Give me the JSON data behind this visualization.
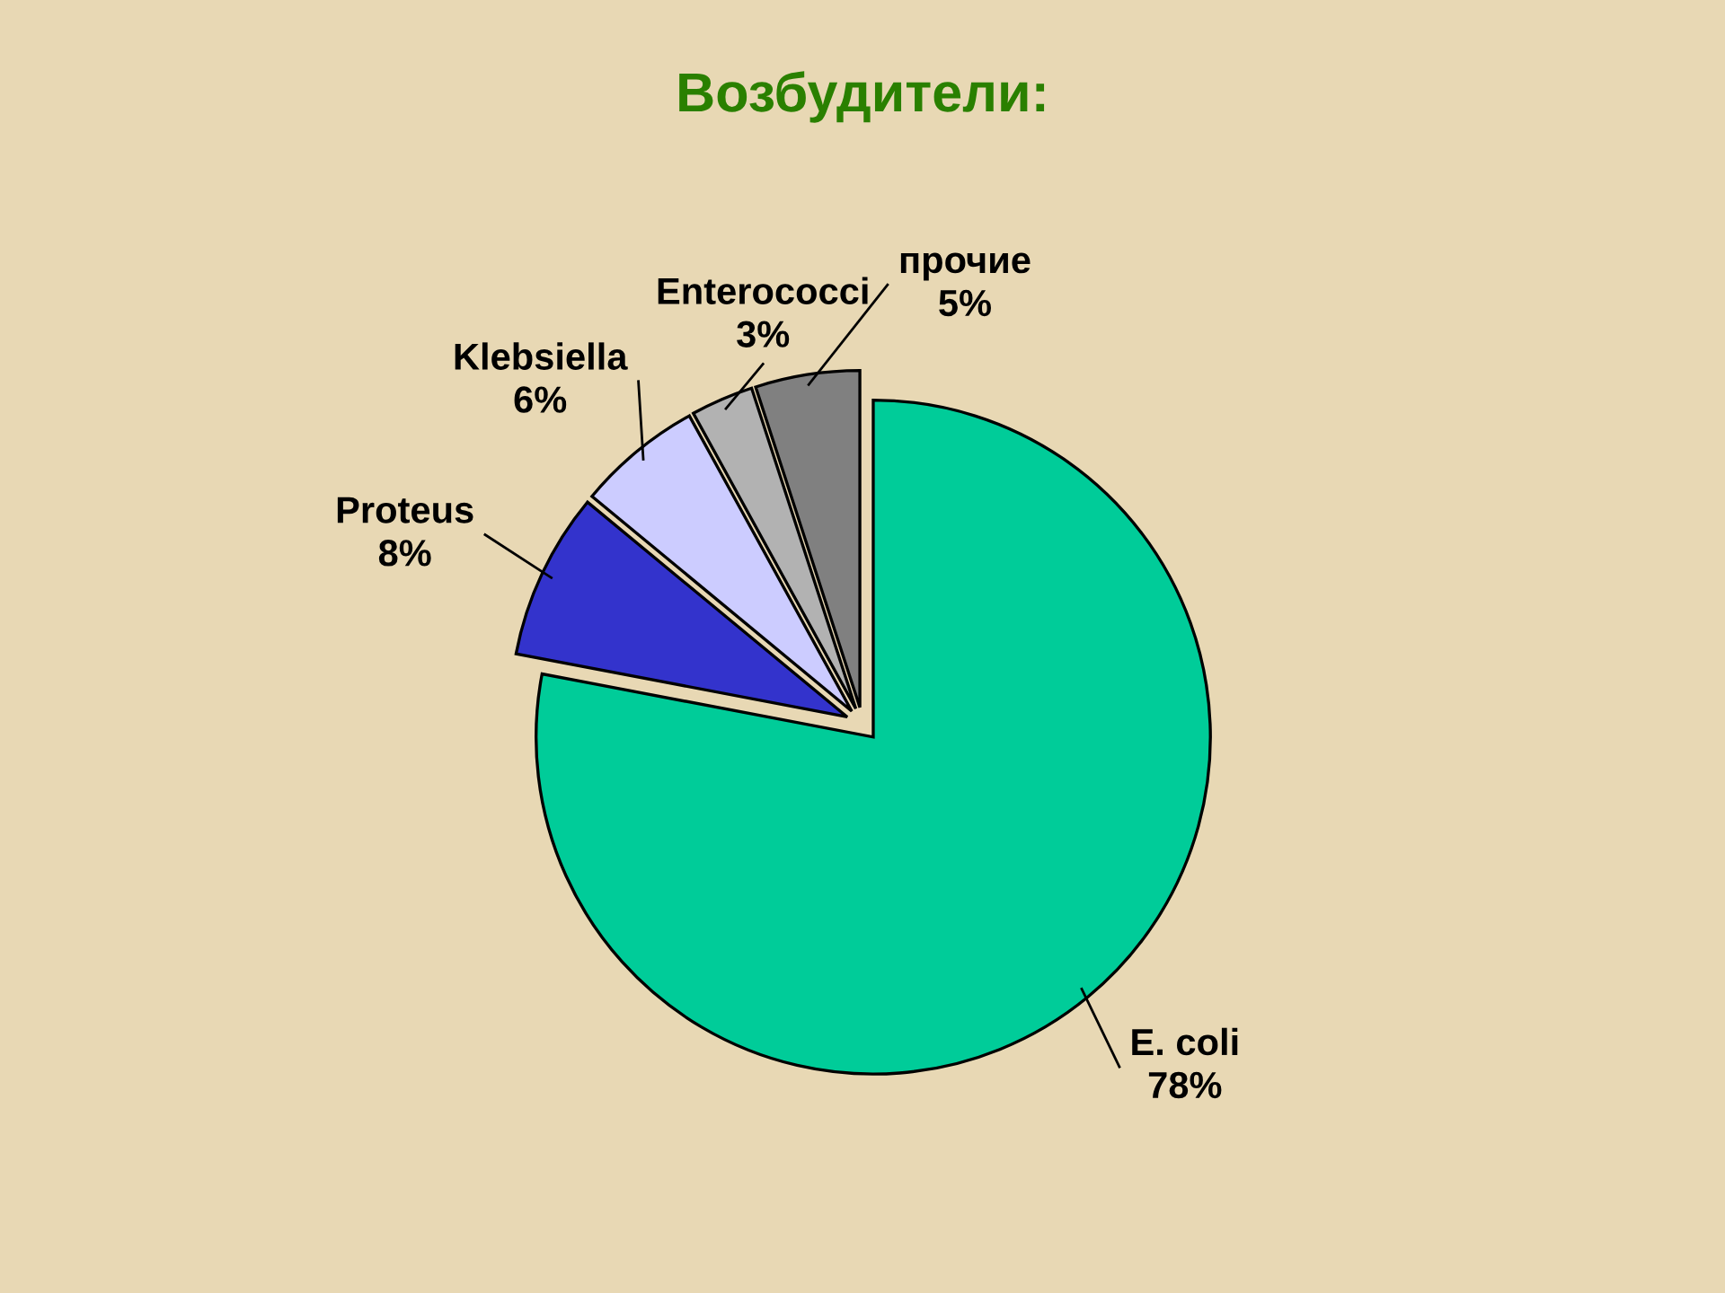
{
  "chart_data": {
    "type": "pie",
    "title": "Возбудители:",
    "categories": [
      "E. coli",
      "Proteus",
      "Klebsiella",
      "Enterococci",
      "прочие"
    ],
    "values": [
      78,
      8,
      6,
      3,
      5
    ],
    "value_labels": [
      "78%",
      "8%",
      "6%",
      "3%",
      "5%"
    ],
    "colors": [
      "#00cc99",
      "#3333cc",
      "#ccccff",
      "#b2b2b2",
      "#808080"
    ]
  }
}
